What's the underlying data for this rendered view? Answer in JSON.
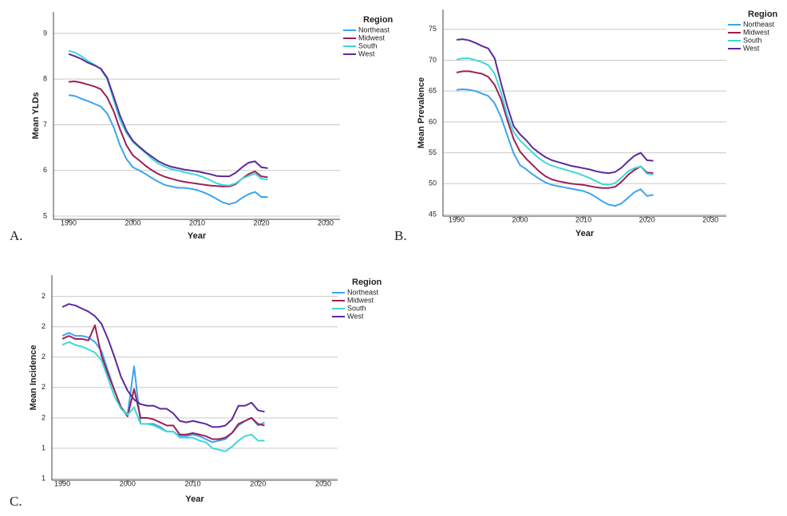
{
  "chart_data": [
    {
      "type": "line",
      "panel_label": "A.",
      "x_label": "Year",
      "y_label": "Mean YLDs",
      "legend_title": "Region",
      "grid": true,
      "x": [
        1990,
        1991,
        1992,
        1993,
        1994,
        1995,
        1996,
        1997,
        1998,
        1999,
        2000,
        2001,
        2002,
        2003,
        2004,
        2005,
        2006,
        2007,
        2008,
        2009,
        2010,
        2011,
        2012,
        2013,
        2014,
        2015,
        2016,
        2017,
        2018,
        2019,
        2020,
        2021
      ],
      "xlim": [
        1987.64,
        2032.24
      ],
      "xticks": [
        1990,
        2000,
        2010,
        2020,
        2030
      ],
      "ylim": [
        4.93,
        9.47
      ],
      "yticks": [
        5,
        6,
        7,
        8,
        9
      ],
      "series": [
        {
          "name": "Northeast",
          "color": "#3ba4f0",
          "values": [
            7.65,
            7.63,
            7.57,
            7.52,
            7.46,
            7.4,
            7.25,
            6.95,
            6.55,
            6.25,
            6.07,
            6.0,
            5.92,
            5.83,
            5.75,
            5.68,
            5.65,
            5.62,
            5.62,
            5.6,
            5.57,
            5.52,
            5.46,
            5.38,
            5.3,
            5.26,
            5.3,
            5.4,
            5.48,
            5.53,
            5.42,
            5.42
          ]
        },
        {
          "name": "Midwest",
          "color": "#9c1f56",
          "values": [
            7.94,
            7.95,
            7.92,
            7.88,
            7.84,
            7.78,
            7.6,
            7.3,
            6.9,
            6.55,
            6.33,
            6.22,
            6.1,
            6.0,
            5.92,
            5.86,
            5.82,
            5.78,
            5.75,
            5.73,
            5.71,
            5.69,
            5.67,
            5.66,
            5.65,
            5.65,
            5.7,
            5.82,
            5.92,
            5.98,
            5.87,
            5.85
          ]
        },
        {
          "name": "South",
          "color": "#3fd8d4",
          "values": [
            8.62,
            8.58,
            8.5,
            8.4,
            8.32,
            8.22,
            8.0,
            7.55,
            7.1,
            6.82,
            6.62,
            6.5,
            6.38,
            6.25,
            6.15,
            6.08,
            6.03,
            6.0,
            5.96,
            5.93,
            5.9,
            5.85,
            5.79,
            5.72,
            5.68,
            5.67,
            5.72,
            5.82,
            5.88,
            5.93,
            5.82,
            5.8
          ]
        },
        {
          "name": "West",
          "color": "#5b2a9b",
          "values": [
            8.55,
            8.5,
            8.44,
            8.36,
            8.3,
            8.23,
            8.03,
            7.62,
            7.2,
            6.87,
            6.65,
            6.52,
            6.4,
            6.3,
            6.2,
            6.13,
            6.08,
            6.05,
            6.02,
            6.0,
            5.98,
            5.95,
            5.92,
            5.88,
            5.87,
            5.87,
            5.95,
            6.07,
            6.17,
            6.2,
            6.07,
            6.05
          ]
        }
      ]
    },
    {
      "type": "line",
      "panel_label": "B.",
      "x_label": "Year",
      "y_label": "Mean Prevalence",
      "legend_title": "Region",
      "grid": true,
      "x": [
        1990,
        1991,
        1992,
        1993,
        1994,
        1995,
        1996,
        1997,
        1998,
        1999,
        2000,
        2001,
        2002,
        2003,
        2004,
        2005,
        2006,
        2007,
        2008,
        2009,
        2010,
        2011,
        2012,
        2013,
        2014,
        2015,
        2016,
        2017,
        2018,
        2019,
        2020,
        2021
      ],
      "xlim": [
        1987.86,
        2032.5
      ],
      "xticks": [
        1990,
        2000,
        2010,
        2020,
        2030
      ],
      "ylim": [
        44.74,
        78.2
      ],
      "yticks": [
        45,
        50,
        55,
        60,
        65,
        70,
        75
      ],
      "series": [
        {
          "name": "Northeast",
          "color": "#3ba4f0",
          "values": [
            65.2,
            65.3,
            65.2,
            65.0,
            64.6,
            64.2,
            63.0,
            60.8,
            57.8,
            54.9,
            53.0,
            52.3,
            51.5,
            50.8,
            50.2,
            49.8,
            49.6,
            49.4,
            49.2,
            49.0,
            48.8,
            48.4,
            47.8,
            47.1,
            46.6,
            46.4,
            46.8,
            47.7,
            48.6,
            49.1,
            48.0,
            48.2
          ]
        },
        {
          "name": "Midwest",
          "color": "#9c1f56",
          "values": [
            68.0,
            68.2,
            68.2,
            68.0,
            67.8,
            67.3,
            66.0,
            63.7,
            60.3,
            57.2,
            55.2,
            54.0,
            53.0,
            52.0,
            51.2,
            50.7,
            50.4,
            50.2,
            50.0,
            49.9,
            49.8,
            49.6,
            49.4,
            49.3,
            49.3,
            49.5,
            50.3,
            51.4,
            52.2,
            52.8,
            51.8,
            51.7
          ]
        },
        {
          "name": "South",
          "color": "#3fd8d4",
          "values": [
            70.1,
            70.3,
            70.3,
            70.0,
            69.7,
            69.2,
            67.8,
            64.8,
            61.0,
            58.3,
            57.0,
            56.0,
            55.0,
            54.1,
            53.4,
            52.9,
            52.6,
            52.3,
            52.0,
            51.7,
            51.3,
            50.9,
            50.4,
            49.9,
            49.8,
            50.1,
            51.0,
            52.0,
            52.5,
            52.8,
            51.6,
            51.5
          ]
        },
        {
          "name": "West",
          "color": "#5b2a9b",
          "values": [
            73.3,
            73.4,
            73.2,
            72.8,
            72.3,
            71.9,
            70.3,
            66.3,
            62.5,
            59.3,
            58.0,
            57.0,
            55.8,
            55.0,
            54.3,
            53.8,
            53.5,
            53.2,
            52.9,
            52.7,
            52.5,
            52.3,
            52.0,
            51.8,
            51.7,
            51.9,
            52.6,
            53.6,
            54.5,
            55.0,
            53.8,
            53.7
          ]
        }
      ]
    },
    {
      "type": "line",
      "panel_label": "C.",
      "x_label": "Year",
      "y_label": "Mean Incidence",
      "legend_title": "Region",
      "grid": true,
      "x": [
        1990,
        1991,
        1992,
        1993,
        1994,
        1995,
        1996,
        1997,
        1998,
        1999,
        2000,
        2001,
        2002,
        2003,
        2004,
        2005,
        2006,
        2007,
        2008,
        2009,
        2010,
        2011,
        2012,
        2013,
        2014,
        2015,
        2016,
        2017,
        2018,
        2019,
        2020,
        2021
      ],
      "xlim": [
        1988.4,
        2032.2
      ],
      "xticks": [
        1990,
        2000,
        2010,
        2020,
        2030
      ],
      "ylim": [
        1.19,
        2.54
      ],
      "yticks": [
        {
          "value": 1.2,
          "label": "1"
        },
        {
          "value": 1.4,
          "label": "1"
        },
        {
          "value": 1.6,
          "label": "2"
        },
        {
          "value": 1.8,
          "label": "2"
        },
        {
          "value": 2.0,
          "label": "2"
        },
        {
          "value": 2.2,
          "label": "2"
        },
        {
          "value": 2.4,
          "label": "2"
        }
      ],
      "series": [
        {
          "name": "Northeast",
          "color": "#3ba4f0",
          "values": [
            2.14,
            2.16,
            2.14,
            2.14,
            2.13,
            2.1,
            2.04,
            1.91,
            1.78,
            1.67,
            1.62,
            1.94,
            1.56,
            1.56,
            1.56,
            1.54,
            1.51,
            1.51,
            1.48,
            1.48,
            1.49,
            1.48,
            1.46,
            1.44,
            1.45,
            1.46,
            1.5,
            1.55,
            1.58,
            1.6,
            1.55,
            1.57
          ]
        },
        {
          "name": "Midwest",
          "color": "#9c1f56",
          "values": [
            2.12,
            2.14,
            2.12,
            2.12,
            2.11,
            2.21,
            2.01,
            1.89,
            1.78,
            1.67,
            1.61,
            1.79,
            1.6,
            1.6,
            1.59,
            1.57,
            1.55,
            1.55,
            1.49,
            1.49,
            1.5,
            1.49,
            1.48,
            1.46,
            1.46,
            1.47,
            1.5,
            1.56,
            1.58,
            1.6,
            1.56,
            1.55
          ]
        },
        {
          "name": "South",
          "color": "#3fd8d4",
          "values": [
            2.08,
            2.1,
            2.08,
            2.07,
            2.05,
            2.03,
            1.98,
            1.86,
            1.74,
            1.66,
            1.62,
            1.67,
            1.56,
            1.56,
            1.55,
            1.53,
            1.51,
            1.51,
            1.47,
            1.47,
            1.47,
            1.45,
            1.44,
            1.4,
            1.39,
            1.38,
            1.41,
            1.45,
            1.48,
            1.49,
            1.45,
            1.45
          ]
        },
        {
          "name": "West",
          "color": "#5b2a9b",
          "values": [
            2.33,
            2.35,
            2.34,
            2.32,
            2.3,
            2.27,
            2.22,
            2.12,
            2.0,
            1.87,
            1.78,
            1.72,
            1.69,
            1.68,
            1.68,
            1.66,
            1.66,
            1.63,
            1.58,
            1.57,
            1.58,
            1.57,
            1.56,
            1.54,
            1.54,
            1.55,
            1.59,
            1.68,
            1.68,
            1.7,
            1.65,
            1.64
          ]
        }
      ]
    }
  ]
}
